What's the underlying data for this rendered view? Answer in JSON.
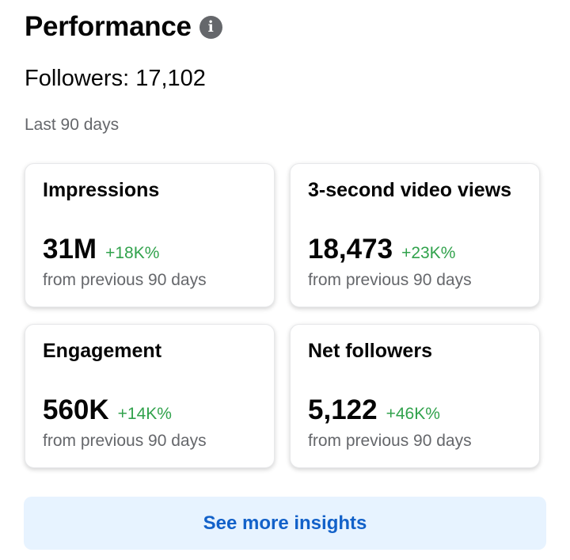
{
  "header": {
    "title": "Performance",
    "info_icon": "info-icon",
    "info_glyph": "i"
  },
  "followers_text": "Followers: 17,102",
  "period": "Last 90 days",
  "colors": {
    "positive_change": "#31a24c",
    "link": "#1261c9",
    "button_bg": "#e7f3ff",
    "secondary_text": "#65676b"
  },
  "metrics": [
    {
      "label": "Impressions",
      "value": "31M",
      "change": "+18K%",
      "note": "from previous 90 days"
    },
    {
      "label": "3-second video views",
      "value": "18,473",
      "change": "+23K%",
      "note": "from previous 90 days"
    },
    {
      "label": "Engagement",
      "value": "560K",
      "change": "+14K%",
      "note": "from previous 90 days"
    },
    {
      "label": "Net followers",
      "value": "5,122",
      "change": "+46K%",
      "note": "from previous 90 days"
    }
  ],
  "more_button_label": "See more insights"
}
